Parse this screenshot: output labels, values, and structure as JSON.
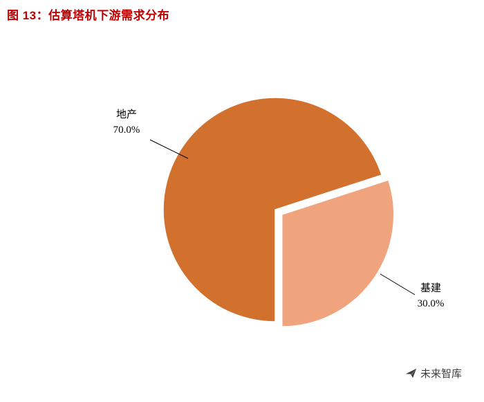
{
  "header": {
    "title": "图 13：估算塔机下游需求分布",
    "title_color": "#c00000"
  },
  "chart_data": {
    "type": "pie",
    "title": "图 13：估算塔机下游需求分布",
    "legend": "none",
    "background": "#ffffff",
    "start_angle_deg": 180,
    "slices": [
      {
        "label": "地产",
        "value": 70.0,
        "display": "70.0%",
        "color": "#d2712e",
        "exploded": false
      },
      {
        "label": "基建",
        "value": 30.0,
        "display": "30.0%",
        "color": "#f0a47d",
        "exploded": true
      }
    ]
  },
  "footer": {
    "watermark": "未来智库"
  }
}
